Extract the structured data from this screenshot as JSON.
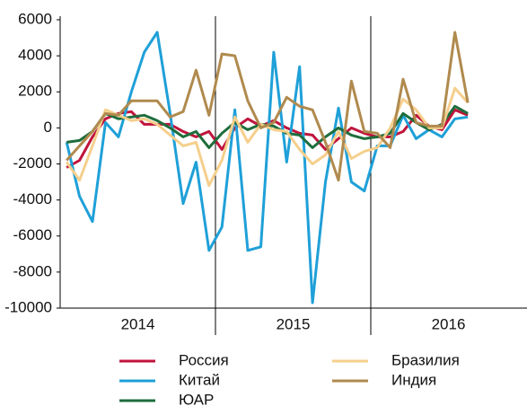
{
  "chart_data": {
    "type": "line",
    "categories": [
      null,
      null,
      null,
      null,
      null,
      null,
      null,
      null,
      null,
      null,
      null,
      null,
      null,
      null,
      null,
      null,
      null,
      null,
      null,
      null,
      null,
      null,
      null,
      null,
      null,
      null,
      null,
      null,
      null,
      null,
      null,
      null
    ],
    "year_labels": [
      "2014",
      "2015",
      "2016"
    ],
    "ylim": [
      -10000,
      6000
    ],
    "yticks": [
      -10000,
      -8000,
      -6000,
      -4000,
      -2000,
      0,
      2000,
      4000,
      6000
    ],
    "series": [
      {
        "name": "Россия",
        "color": "#c0143c",
        "values": [
          -2200,
          -1800,
          -500,
          500,
          800,
          900,
          200,
          200,
          200,
          -200,
          -500,
          -200,
          -1200,
          0,
          500,
          100,
          400,
          0,
          -300,
          -400,
          -1200,
          -600,
          0,
          -300,
          -500,
          -500,
          -200,
          700,
          100,
          -100,
          1000,
          700
        ]
      },
      {
        "name": "Китай",
        "color": "#1fa0d8",
        "values": [
          -800,
          -3800,
          -5200,
          300,
          -500,
          2000,
          4200,
          5300,
          800,
          -4200,
          -1900,
          -6800,
          -5500,
          1000,
          -6800,
          -6600,
          4200,
          -1900,
          3400,
          -9700,
          -3000,
          1100,
          -3000,
          -3500,
          -1000,
          -1000,
          700,
          -600,
          -100,
          -500,
          500,
          600
        ]
      },
      {
        "name": "ЮАР",
        "color": "#1e6e3c",
        "values": [
          -800,
          -700,
          -200,
          800,
          500,
          600,
          700,
          400,
          0,
          -500,
          -200,
          -1100,
          -300,
          300,
          -100,
          200,
          100,
          -300,
          -400,
          -1100,
          -500,
          0,
          -400,
          -600,
          -500,
          -300,
          800,
          300,
          -100,
          200,
          1200,
          800
        ]
      },
      {
        "name": "Бразилия",
        "color": "#f5cf8c",
        "values": [
          -1900,
          -2900,
          -1000,
          1000,
          700,
          400,
          500,
          200,
          -400,
          -1000,
          -800,
          -3200,
          -1800,
          600,
          -800,
          200,
          -100,
          -200,
          -1200,
          -2000,
          -1500,
          -200,
          -1700,
          -1300,
          -1100,
          0,
          1600,
          1000,
          0,
          0,
          2200,
          1400
        ]
      },
      {
        "name": "Индия",
        "color": "#b08a4e",
        "values": [
          -1800,
          -1000,
          -200,
          800,
          700,
          1500,
          1500,
          1500,
          600,
          900,
          3200,
          700,
          4100,
          4000,
          1500,
          0,
          300,
          1700,
          1200,
          1000,
          -800,
          -2900,
          2600,
          -200,
          -300,
          -1100,
          2700,
          300,
          100,
          100,
          5300,
          1400
        ]
      }
    ]
  }
}
